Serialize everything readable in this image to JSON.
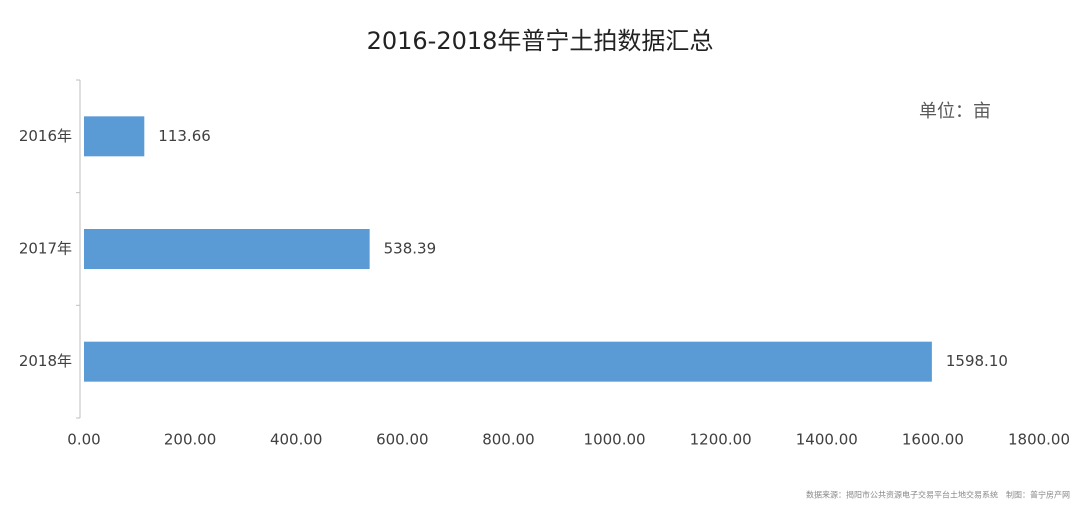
{
  "chart_data": {
    "type": "hbar",
    "title": "2016-2018年普宁土拍数据汇总",
    "unit": "单位：亩",
    "categories": [
      "2016年",
      "2017年",
      "2018年"
    ],
    "values": [
      113.66,
      538.39,
      1598.1
    ],
    "value_labels": [
      "113.66",
      "538.39",
      "1598.10"
    ],
    "color": "#5b9bd5",
    "xlim": [
      0,
      1800
    ],
    "xticks": [
      {
        "value": 0,
        "label": "0.00"
      },
      {
        "value": 200,
        "label": "200.00"
      },
      {
        "value": 400,
        "label": "400.00"
      },
      {
        "value": 600,
        "label": "600.00"
      },
      {
        "value": 800,
        "label": "800.00"
      },
      {
        "value": 1000,
        "label": "1000.00"
      },
      {
        "value": 1200,
        "label": "1200.00"
      },
      {
        "value": 1400,
        "label": "1400.00"
      },
      {
        "value": 1600,
        "label": "1600.00"
      },
      {
        "value": 1800,
        "label": "1800.00"
      }
    ],
    "grid": false,
    "source": "数据来源：揭阳市公共资源电子交易平台土地交易系统　制图：普宁房产网"
  }
}
